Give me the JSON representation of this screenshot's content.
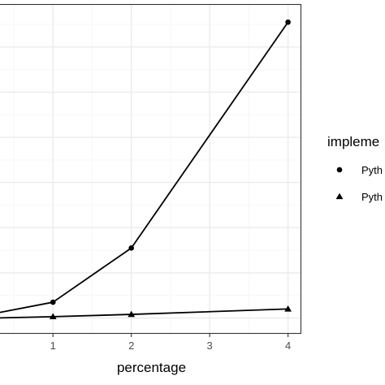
{
  "chart_data": {
    "type": "line",
    "title": "",
    "xlabel": "percentage",
    "ylabel": "",
    "x_ticks": [
      1,
      2,
      3,
      4
    ],
    "xlim": [
      0.22,
      4.17
    ],
    "ylim": [
      -0.35,
      6.95
    ],
    "grid": true,
    "legend": {
      "title": "impleme",
      "placement": "right",
      "entries": [
        "Pyth",
        "Pyth"
      ]
    },
    "series": [
      {
        "name": "Pyth",
        "marker": "circle",
        "x": [
          0.25,
          1,
          2,
          4
        ],
        "y": [
          0.1,
          0.35,
          1.55,
          6.55
        ]
      },
      {
        "name": "Pyth",
        "marker": "triangle",
        "x": [
          0.25,
          1,
          2,
          4
        ],
        "y": [
          0.0,
          0.03,
          0.08,
          0.2
        ]
      }
    ],
    "colors": {
      "background": "#ffffff",
      "grid_major": "#ebebeb",
      "grid_minor": "#f5f5f5",
      "panel_border": "#333333",
      "series": "#000000"
    }
  }
}
